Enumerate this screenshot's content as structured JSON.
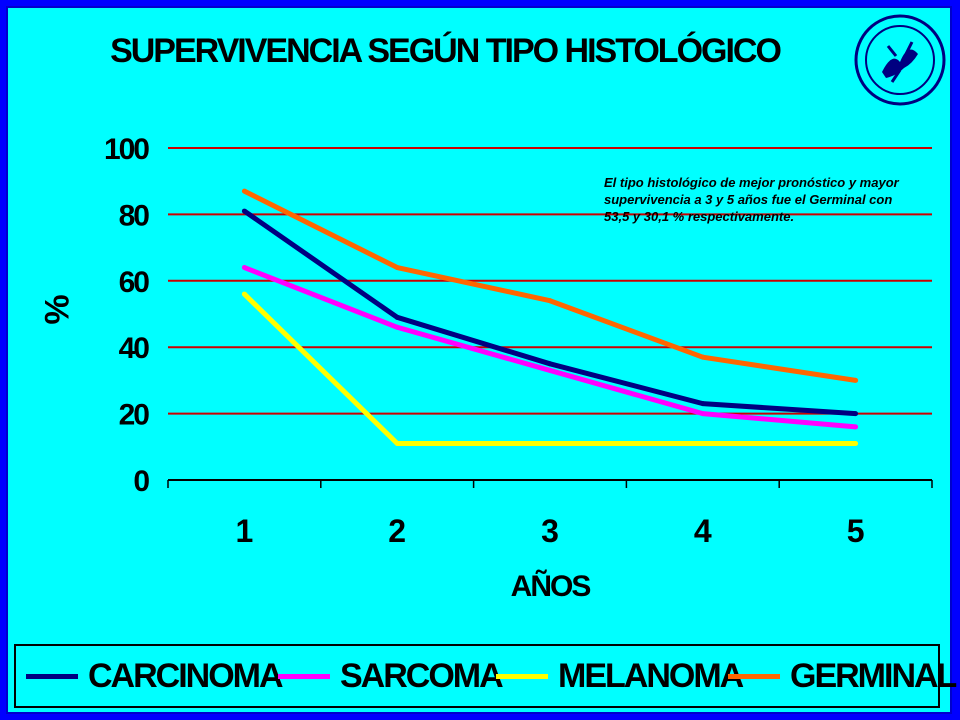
{
  "title": "SUPERVIVENCIA SEGÚN TIPO HISTOLÓGICO",
  "annotation": "El tipo histológico de mejor pronóstico y mayor supervivencia a 3 y 5 años fue el Germinal con 53,5 y 30,1 % respectivamente.",
  "chart_data": {
    "type": "line",
    "title": "SUPERVIVENCIA SEGÚN TIPO HISTOLÓGICO",
    "xlabel": "AÑOS",
    "ylabel": "%",
    "x": [
      "1",
      "2",
      "3",
      "4",
      "5"
    ],
    "ylim": [
      0,
      100
    ],
    "yticks": [
      "0",
      "20",
      "40",
      "60",
      "80",
      "100"
    ],
    "grid": "horizontal",
    "legend_position": "bottom",
    "series": [
      {
        "name": "CARCINOMA",
        "color": "#000080",
        "values": [
          81,
          49,
          35,
          23,
          20
        ]
      },
      {
        "name": "SARCOMA",
        "color": "#ff00ff",
        "values": [
          64,
          46,
          33,
          20,
          16
        ]
      },
      {
        "name": "MELANOMA",
        "color": "#ffff00",
        "values": [
          56,
          11,
          11,
          11,
          11
        ]
      },
      {
        "name": "GERMINAL",
        "color": "#ff6600",
        "values": [
          87,
          64,
          54,
          37,
          30
        ]
      }
    ]
  },
  "colors": {
    "background": "#00ffff",
    "frame": "#0000ff",
    "gridline": "#cc0000"
  }
}
